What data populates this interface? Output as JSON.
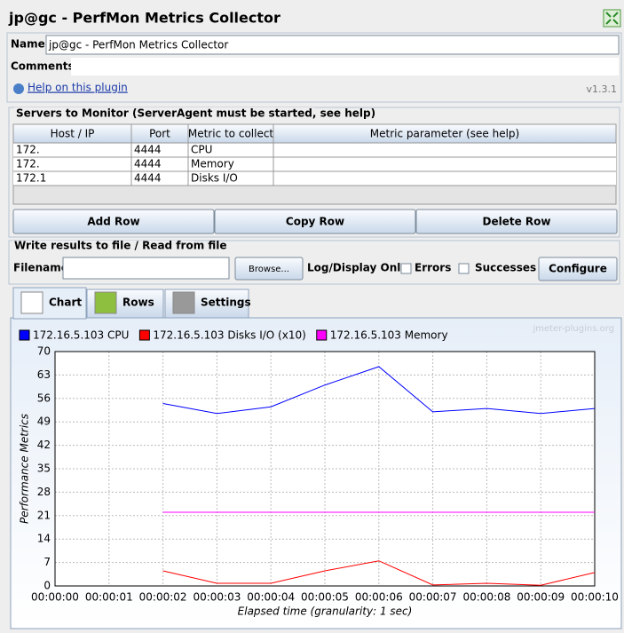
{
  "window": {
    "title": "jp@gc - PerfMon Metrics Collector",
    "name_label": "Name:",
    "name_value": "jp@gc - PerfMon Metrics Collector",
    "comments_label": "Comments:",
    "help_link": "Help on this plugin",
    "version": "v1.3.1"
  },
  "servers": {
    "title": "Servers to Monitor (ServerAgent must be started, see help)",
    "columns": [
      "Host / IP",
      "Port",
      "Metric to collect",
      "Metric parameter (see help)"
    ],
    "rows": [
      [
        "172.",
        "4444",
        "CPU"
      ],
      [
        "172.",
        "4444",
        "Memory"
      ],
      [
        "172.1",
        "4444",
        "Disks I/O"
      ]
    ],
    "buttons": [
      "Add Row",
      "Copy Row",
      "Delete Row"
    ]
  },
  "file": {
    "title": "Write results to file / Read from file",
    "filename_label": "Filename",
    "browse": "Browse...",
    "log_label": "Log/Display Only:",
    "errors": "Errors",
    "successes": "Successes",
    "configure": "Configure"
  },
  "tabs": [
    "Chart",
    "Rows",
    "Settings"
  ],
  "chart_data": {
    "type": "line",
    "watermark": "jmeter-plugins.org",
    "ylabel": "Performance Metrics",
    "xlabel": "Elapsed time (granularity: 1 sec)",
    "categories": [
      "00:00:00",
      "00:00:01",
      "00:00:02",
      "00:00:03",
      "00:00:04",
      "00:00:05",
      "00:00:06",
      "00:00:07",
      "00:00:08",
      "00:00:09",
      "00:00:10"
    ],
    "series": [
      {
        "name": "172.16.5.103 CPU",
        "color": "#0000ff",
        "values": [
          null,
          null,
          54.5,
          51.5,
          53.5,
          60,
          65.5,
          52,
          53,
          51.5,
          53
        ]
      },
      {
        "name": "172.16.5.103 Disks I/O (x10)",
        "color": "#ff0000",
        "values": [
          null,
          null,
          4.5,
          0.8,
          0.8,
          4.5,
          7.5,
          0.3,
          0.8,
          0.2,
          4
        ]
      },
      {
        "name": "172.16.5.103 Memory",
        "color": "#ff00ff",
        "values": [
          null,
          null,
          22,
          22,
          22,
          22,
          22,
          22,
          22,
          22,
          22
        ]
      }
    ],
    "ylim": [
      0,
      70
    ],
    "yticks": [
      0,
      7,
      14,
      21,
      28,
      35,
      42,
      49,
      56,
      63,
      70
    ],
    "grid": true,
    "legend": "top-left"
  }
}
